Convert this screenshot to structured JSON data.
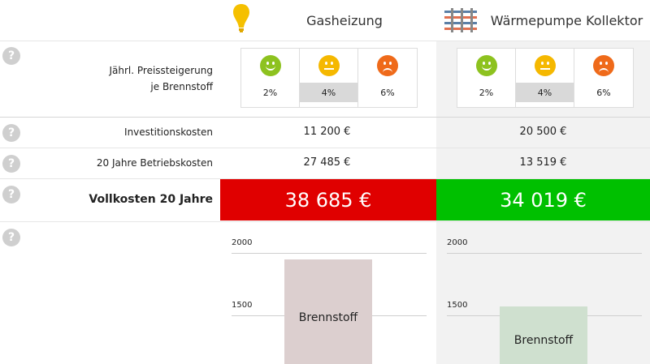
{
  "columns": {
    "gas": {
      "title": "Gasheizung",
      "icon": "lightbulb-icon"
    },
    "hp": {
      "title": "Wärmepumpe Kollektor",
      "icon": "heat-pump-collector-icon"
    }
  },
  "help_symbol": "?",
  "rows": {
    "price_increase": {
      "label_line1": "Jährl. Preissteigerung",
      "label_line2": "je Brennstoff",
      "options": [
        {
          "pct": "2%",
          "face": "happy-face-icon",
          "color": "#8dc21f"
        },
        {
          "pct": "4%",
          "face": "neutral-face-icon",
          "color": "#f5b800"
        },
        {
          "pct": "6%",
          "face": "sad-face-icon",
          "color": "#ef6a1a"
        }
      ],
      "selected": "4%"
    },
    "investment": {
      "label": "Investitionskosten",
      "gas": "11 200 €",
      "hp": "20 500 €"
    },
    "operating": {
      "label": "20 Jahre Betriebskosten",
      "gas": "27 485 €",
      "hp": "13 519 €"
    },
    "total": {
      "label": "Vollkosten 20 Jahre",
      "gas": "38 685 €",
      "hp": "34 019 €",
      "gas_color": "#e00000",
      "hp_color": "#00c000"
    }
  },
  "chart_data": [
    {
      "type": "bar",
      "categories": [
        "Brennstoff"
      ],
      "series": [
        {
          "name": "Brennstoff",
          "values": [
            1950
          ]
        }
      ],
      "yticks": [
        "2000",
        "1500"
      ],
      "color": "#dccfcf"
    },
    {
      "type": "bar",
      "categories": [
        "Brennstoff"
      ],
      "series": [
        {
          "name": "Brennstoff",
          "values": [
            1570
          ]
        }
      ],
      "yticks": [
        "2000",
        "1500"
      ],
      "color": "#cfe0cf"
    }
  ]
}
